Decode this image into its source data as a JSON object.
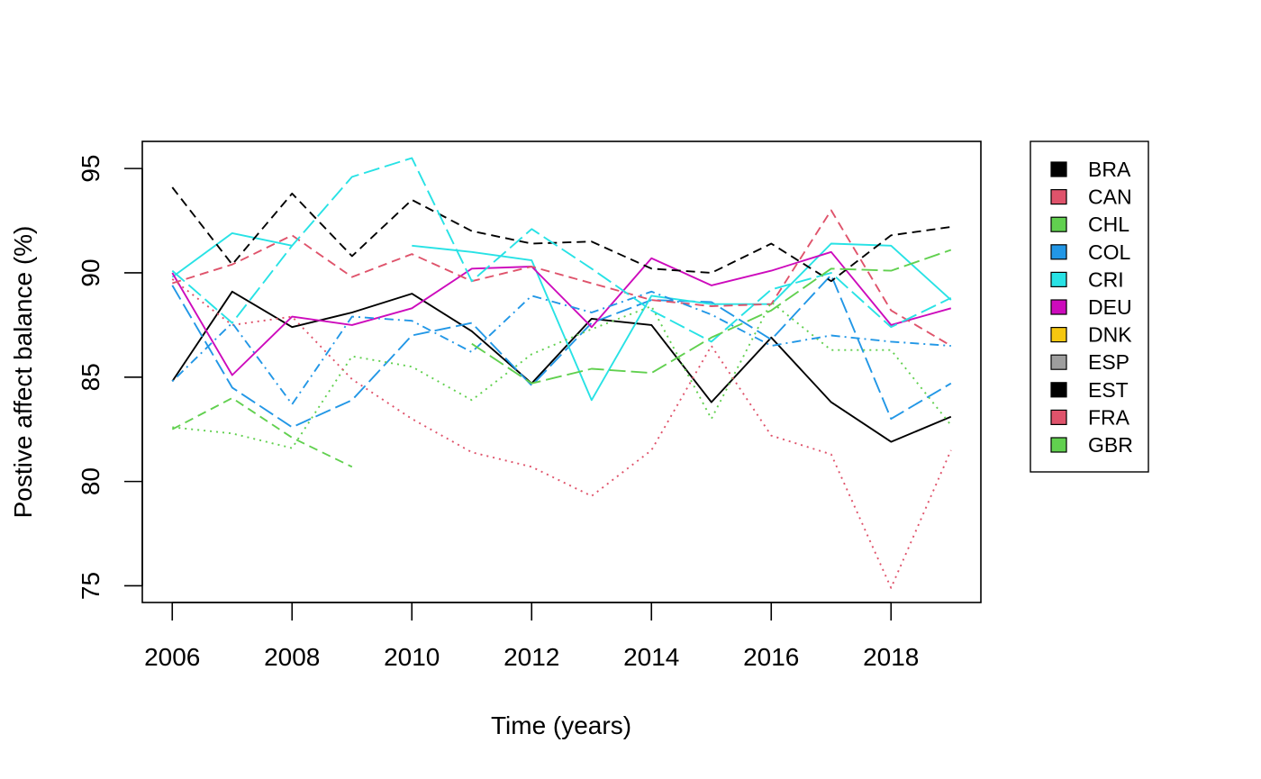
{
  "chart_data": {
    "type": "line",
    "title": "",
    "xlabel": "Time (years)",
    "ylabel": "Postive affect balance (%)",
    "xlim": [
      2005.5,
      2019.5
    ],
    "ylim": [
      74.2,
      96.3
    ],
    "grid": false,
    "legend_placement": "outside-right",
    "x_ticks": [
      2006,
      2008,
      2010,
      2012,
      2014,
      2016,
      2018
    ],
    "x_tick_labels": [
      "2006",
      "2008",
      "2010",
      "2012",
      "2014",
      "2016",
      "2018"
    ],
    "y_ticks": [
      75,
      80,
      85,
      90,
      95
    ],
    "y_tick_labels": [
      "75",
      "80",
      "85",
      "90",
      "95"
    ],
    "x": [
      2006,
      2007,
      2008,
      2009,
      2010,
      2011,
      2012,
      2013,
      2014,
      2015,
      2016,
      2017,
      2018,
      2019
    ],
    "series": [
      {
        "name": "BRA",
        "color": "#000000",
        "dash": "solid",
        "values": [
          84.8,
          89.1,
          87.4,
          88.1,
          89.0,
          87.2,
          84.7,
          87.8,
          87.5,
          83.8,
          86.9,
          83.8,
          81.9,
          83.1
        ]
      },
      {
        "name": "CAN",
        "color": "#DF536B",
        "dash": "solid",
        "values": [
          null,
          null,
          null,
          null,
          null,
          null,
          null,
          null,
          null,
          null,
          null,
          null,
          null,
          null
        ]
      },
      {
        "name": "CHL",
        "color": "#61D04F",
        "dash": "dashed",
        "values": [
          82.5,
          84.0,
          82.1,
          80.7,
          null,
          null,
          null,
          null,
          null,
          null,
          null,
          null,
          null,
          null
        ]
      },
      {
        "name": "COL",
        "color": "#2297E6",
        "dash": "longdash",
        "values": [
          89.4,
          84.5,
          82.6,
          83.9,
          87.0,
          87.6,
          84.6,
          87.6,
          88.7,
          88.6,
          86.8,
          89.9,
          83.0,
          84.7
        ]
      },
      {
        "name": "CRI",
        "color": "#28E2E5",
        "dash": "solid",
        "values": [
          89.8,
          91.9,
          91.3,
          null,
          91.3,
          91.0,
          90.6,
          83.9,
          88.9,
          88.5,
          88.5,
          91.4,
          91.3,
          88.7
        ]
      },
      {
        "name": "DEU",
        "color": "#CD0BBC",
        "dash": "solid",
        "values": [
          90.0,
          85.1,
          87.9,
          87.5,
          88.3,
          90.2,
          90.3,
          87.4,
          90.7,
          89.4,
          90.1,
          91.0,
          87.5,
          88.3
        ]
      },
      {
        "name": "DNK",
        "color": "#F5C710",
        "dash": "solid",
        "values": [
          null,
          null,
          null,
          null,
          null,
          null,
          null,
          null,
          null,
          null,
          null,
          null,
          null,
          null
        ]
      },
      {
        "name": "ESP",
        "color": "#9E9E9E",
        "dash": "solid",
        "values": [
          null,
          null,
          null,
          null,
          null,
          null,
          null,
          null,
          null,
          null,
          null,
          null,
          null,
          null
        ]
      },
      {
        "name": "EST",
        "color": "#000000",
        "dash": "dashed",
        "values": [
          94.1,
          90.4,
          93.8,
          90.8,
          93.5,
          92.0,
          91.4,
          91.5,
          90.2,
          90.0,
          91.4,
          89.6,
          91.8,
          92.2
        ]
      },
      {
        "name": "FRA",
        "color": "#DF536B",
        "dash": "dashed",
        "values": [
          89.5,
          90.4,
          91.8,
          89.8,
          90.9,
          89.6,
          90.3,
          89.5,
          88.7,
          88.4,
          88.5,
          93.0,
          88.2,
          86.5
        ]
      },
      {
        "name": "GBR",
        "color": "#61D04F",
        "dash": "dotted",
        "values": [
          82.6,
          82.3,
          81.6,
          86.0,
          85.5,
          83.9,
          86.1,
          87.3,
          88.4,
          83.0,
          88.6,
          86.3,
          86.3,
          82.7
        ]
      },
      {
        "name": "",
        "color": "#DF536B",
        "dash": "dotted",
        "values": [
          89.7,
          87.5,
          87.9,
          84.9,
          83.0,
          81.4,
          80.7,
          79.3,
          81.5,
          86.5,
          82.2,
          81.3,
          74.9,
          81.5
        ]
      },
      {
        "name": "",
        "color": "#2297E6",
        "dash": "dotdash",
        "values": [
          84.8,
          87.6,
          83.7,
          87.9,
          87.7,
          86.2,
          88.9,
          88.1,
          89.1,
          88.0,
          86.5,
          87.0,
          86.7,
          86.5
        ]
      },
      {
        "name": "",
        "color": "#28E2E5",
        "dash": "longdash",
        "values": [
          90.1,
          87.6,
          91.3,
          94.6,
          95.5,
          89.6,
          92.1,
          90.2,
          88.2,
          86.7,
          89.2,
          90.0,
          87.4,
          88.8
        ]
      },
      {
        "name": "",
        "color": "#61D04F",
        "dash": "longdash",
        "values": [
          null,
          null,
          null,
          null,
          null,
          86.6,
          84.7,
          85.4,
          85.2,
          86.9,
          88.2,
          90.2,
          90.1,
          91.1
        ]
      }
    ],
    "legend": [
      {
        "label": "BRA",
        "color": "#000000"
      },
      {
        "label": "CAN",
        "color": "#DF536B"
      },
      {
        "label": "CHL",
        "color": "#61D04F"
      },
      {
        "label": "COL",
        "color": "#2297E6"
      },
      {
        "label": "CRI",
        "color": "#28E2E5"
      },
      {
        "label": "DEU",
        "color": "#CD0BBC"
      },
      {
        "label": "DNK",
        "color": "#F5C710"
      },
      {
        "label": "ESP",
        "color": "#9E9E9E"
      },
      {
        "label": "EST",
        "color": "#000000"
      },
      {
        "label": "FRA",
        "color": "#DF536B"
      },
      {
        "label": "GBR",
        "color": "#61D04F"
      }
    ]
  }
}
